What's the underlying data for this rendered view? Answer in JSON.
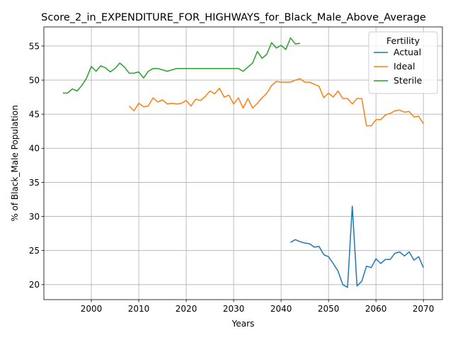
{
  "chart_data": {
    "type": "line",
    "title": "Score_2_in_EXPENDITURE_FOR_HIGHWAYS_for_Black_Male_Above_Average",
    "xlabel": "Years",
    "ylabel": "% of Black_Male Population",
    "xlim": [
      1990,
      2074
    ],
    "ylim": [
      17.8,
      57.8
    ],
    "xticks": [
      2000,
      2010,
      2020,
      2030,
      2040,
      2050,
      2060,
      2070
    ],
    "yticks": [
      20,
      25,
      30,
      35,
      40,
      45,
      50,
      55
    ],
    "grid": true,
    "legend": {
      "title": "Fertility",
      "position": "top-right"
    },
    "series": [
      {
        "name": "Actual",
        "color": "#1f77b4",
        "x": [
          2042,
          2043,
          2044,
          2045,
          2046,
          2047,
          2048,
          2049,
          2050,
          2051,
          2052,
          2053,
          2054,
          2055,
          2056,
          2057,
          2058,
          2059,
          2060,
          2061,
          2062,
          2063,
          2064,
          2065,
          2066,
          2067,
          2068,
          2069,
          2070
        ],
        "y": [
          26.2,
          26.6,
          26.3,
          26.1,
          26.0,
          25.5,
          25.6,
          24.4,
          24.1,
          23.1,
          22.0,
          20.0,
          19.6,
          31.5,
          19.8,
          20.5,
          22.7,
          22.5,
          23.8,
          23.1,
          23.7,
          23.7,
          24.6,
          24.8,
          24.2,
          24.8,
          23.6,
          24.1,
          22.5
        ]
      },
      {
        "name": "Ideal",
        "color": "#ff7f0e",
        "x": [
          2008,
          2009,
          2010,
          2011,
          2012,
          2013,
          2014,
          2015,
          2016,
          2017,
          2018,
          2019,
          2020,
          2021,
          2022,
          2023,
          2024,
          2025,
          2026,
          2027,
          2028,
          2029,
          2030,
          2031,
          2032,
          2033,
          2034,
          2035,
          2036,
          2037,
          2038,
          2039,
          2040,
          2041,
          2042,
          2043,
          2044,
          2045,
          2046,
          2047,
          2048,
          2049,
          2050,
          2051,
          2052,
          2053,
          2054,
          2055,
          2056,
          2057,
          2058,
          2059,
          2060,
          2061,
          2062,
          2063,
          2064,
          2065,
          2066,
          2067,
          2068,
          2069,
          2070
        ],
        "y": [
          46.2,
          45.5,
          46.6,
          46.1,
          46.2,
          47.4,
          46.8,
          47.1,
          46.5,
          46.6,
          46.5,
          46.6,
          47.0,
          46.2,
          47.2,
          47.0,
          47.6,
          48.4,
          48.0,
          48.8,
          47.5,
          47.8,
          46.5,
          47.4,
          45.9,
          47.3,
          45.9,
          46.6,
          47.4,
          48.1,
          49.2,
          49.8,
          49.7,
          49.7,
          49.7,
          50.0,
          50.2,
          49.7,
          49.7,
          49.4,
          49.1,
          47.4,
          48.1,
          47.5,
          48.4,
          47.3,
          47.3,
          46.5,
          47.3,
          47.3,
          43.3,
          43.3,
          44.2,
          44.2,
          44.9,
          45.1,
          45.5,
          45.6,
          45.3,
          45.4,
          44.6,
          44.7,
          43.6
        ]
      },
      {
        "name": "Sterile",
        "color": "#2ca02c",
        "x": [
          1994,
          1995,
          1996,
          1997,
          1998,
          1999,
          2000,
          2001,
          2002,
          2003,
          2004,
          2005,
          2006,
          2007,
          2008,
          2009,
          2010,
          2011,
          2012,
          2013,
          2014,
          2015,
          2016,
          2017,
          2018,
          2019,
          2020,
          2021,
          2022,
          2023,
          2024,
          2025,
          2026,
          2027,
          2028,
          2029,
          2030,
          2031,
          2032,
          2033,
          2034,
          2035,
          2036,
          2037,
          2038,
          2039,
          2040,
          2041,
          2042,
          2043,
          2044
        ],
        "y": [
          48.1,
          48.1,
          48.7,
          48.4,
          49.2,
          50.3,
          52.0,
          51.3,
          52.1,
          51.8,
          51.2,
          51.7,
          52.5,
          51.9,
          51.0,
          51.0,
          51.2,
          50.3,
          51.3,
          51.7,
          51.7,
          51.5,
          51.3,
          51.5,
          51.7,
          51.7,
          51.7,
          51.7,
          51.7,
          51.7,
          51.7,
          51.7,
          51.7,
          51.7,
          51.7,
          51.7,
          51.7,
          51.7,
          51.3,
          51.9,
          52.5,
          54.2,
          53.2,
          53.8,
          55.5,
          54.7,
          55.1,
          54.5,
          56.2,
          55.3,
          55.4
        ]
      }
    ]
  }
}
